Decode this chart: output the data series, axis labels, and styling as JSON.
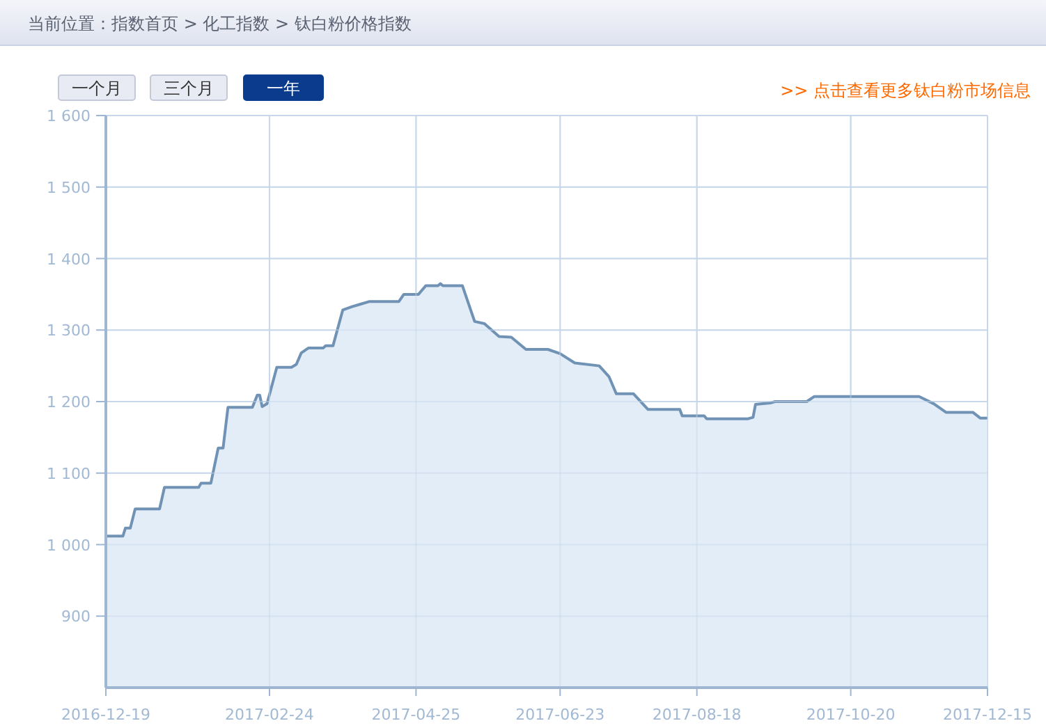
{
  "chart_data": {
    "type": "area",
    "annotations": [
      "当前位置：指数首页 > 化工指数 > 钛白粉价格指数",
      "一个月",
      "三个月",
      "一年",
      ">> 点击查看更多钛白粉市场信息"
    ],
    "x": [
      "2016-12-19",
      "2016-12-26",
      "2016-12-27",
      "2016-12-29",
      "2016-12-31",
      "2017-01-10",
      "2017-01-12",
      "2017-01-26",
      "2017-01-27",
      "2017-01-31",
      "2017-02-03",
      "2017-02-05",
      "2017-02-07",
      "2017-02-17",
      "2017-02-19",
      "2017-02-20",
      "2017-02-21",
      "2017-02-23",
      "2017-02-27",
      "2017-03-05",
      "2017-03-07",
      "2017-03-09",
      "2017-03-12",
      "2017-03-18",
      "2017-03-19",
      "2017-03-22",
      "2017-03-26",
      "2017-03-30",
      "2017-04-03",
      "2017-04-06",
      "2017-04-18",
      "2017-04-20",
      "2017-04-26",
      "2017-04-29",
      "2017-05-04",
      "2017-05-05",
      "2017-05-06",
      "2017-05-14",
      "2017-05-19",
      "2017-05-23",
      "2017-05-29",
      "2017-06-03",
      "2017-06-09",
      "2017-06-18",
      "2017-06-23",
      "2017-06-29",
      "2017-07-09",
      "2017-07-13",
      "2017-07-16",
      "2017-07-23",
      "2017-07-29",
      "2017-08-02",
      "2017-08-11",
      "2017-08-12",
      "2017-08-21",
      "2017-08-22",
      "2017-09-08",
      "2017-09-10",
      "2017-09-11",
      "2017-09-17",
      "2017-09-19",
      "2017-10-02",
      "2017-10-05",
      "2017-11-17",
      "2017-11-23",
      "2017-11-28",
      "2017-12-09",
      "2017-12-12",
      "2017-12-15"
    ],
    "series": [
      {
        "color": "#7092b4",
        "values": [
          1012,
          1012,
          1023,
          1023,
          1050,
          1050,
          1080,
          1080,
          1086,
          1086,
          1135,
          1135,
          1192,
          1192,
          1209,
          1209,
          1193,
          1197,
          1248,
          1248,
          1252,
          1268,
          1275,
          1275,
          1278,
          1278,
          1328,
          1333,
          1337,
          1340,
          1340,
          1350,
          1350,
          1362,
          1362,
          1365,
          1362,
          1362,
          1312,
          1309,
          1291,
          1290,
          1273,
          1273,
          1267,
          1254,
          1250,
          1235,
          1211,
          1211,
          1189,
          1189,
          1189,
          1180,
          1180,
          1176,
          1176,
          1178,
          1196,
          1198,
          1200,
          1200,
          1207,
          1207,
          1197,
          1185,
          1185,
          1177,
          1177
        ]
      }
    ],
    "xlim": [
      "2016-12-19",
      "2017-12-15"
    ],
    "xticks": [
      "2016-12-19",
      "2017-02-24",
      "2017-04-25",
      "2017-06-23",
      "2017-08-18",
      "2017-10-20",
      "2017-12-15"
    ],
    "ylim": [
      800,
      1600
    ],
    "yticks": [
      900,
      {
        "value": 1000,
        "label": "1 000"
      },
      {
        "value": 1100,
        "label": "1 100"
      },
      {
        "value": 1200,
        "label": "1 200"
      },
      {
        "value": 1300,
        "label": "1 300"
      },
      {
        "value": 1400,
        "label": "1 400"
      },
      {
        "value": 1500,
        "label": "1 500"
      },
      {
        "value": 1600,
        "label": "1 600"
      }
    ],
    "grid": true
  }
}
